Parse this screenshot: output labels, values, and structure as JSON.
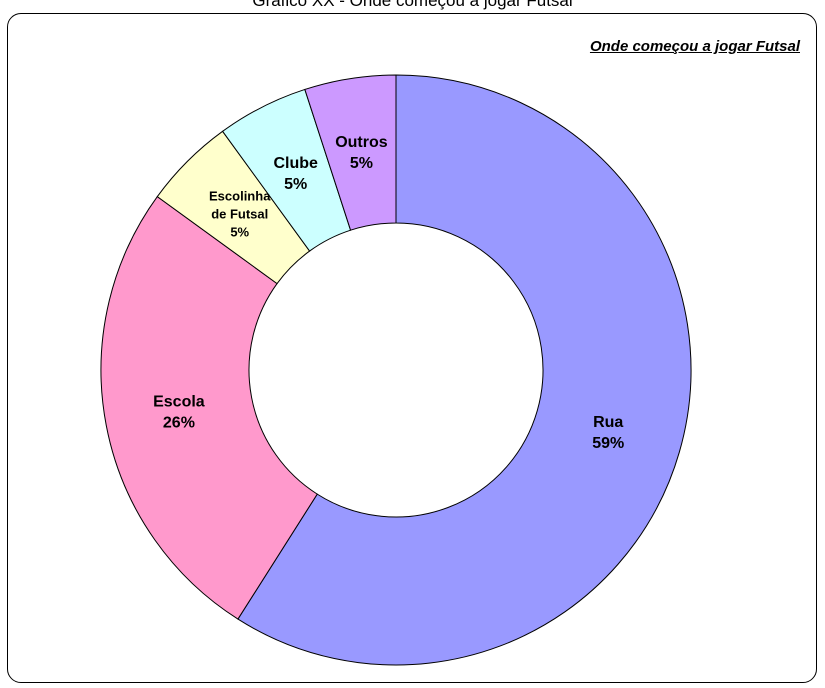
{
  "page": {
    "caption": "Gráfico XX - Onde começou a jogar Futsal"
  },
  "chart_data": {
    "type": "pie",
    "variant": "donut",
    "title": "Onde começou a jogar Futsal",
    "legend": "none",
    "slices": [
      {
        "label": "Rua",
        "percent_label": "59%",
        "value": 59,
        "color": "#9999FF"
      },
      {
        "label": "Escola",
        "percent_label": "26%",
        "value": 26,
        "color": "#FF99CC"
      },
      {
        "label": "Escolinha de Futsal",
        "label_lines": [
          "Escolinha",
          "de Futsal"
        ],
        "percent_label": "5%",
        "value": 5,
        "color": "#FFFFCC"
      },
      {
        "label": "Clube",
        "percent_label": "5%",
        "value": 5,
        "color": "#CCFFFF"
      },
      {
        "label": "Outros",
        "percent_label": "5%",
        "value": 5,
        "color": "#CC99FF"
      }
    ]
  }
}
